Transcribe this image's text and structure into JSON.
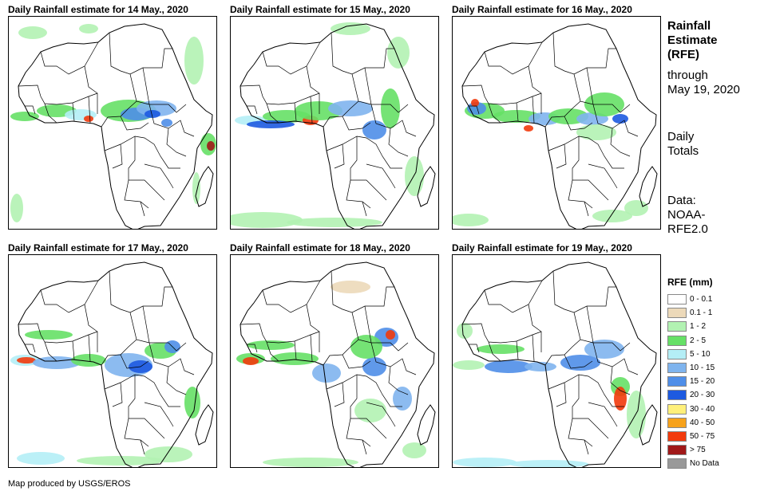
{
  "panels": [
    {
      "title": "Daily Rainfall estimate for 14 May., 2020"
    },
    {
      "title": "Daily Rainfall estimate for 15 May., 2020"
    },
    {
      "title": "Daily Rainfall estimate for 16 May., 2020"
    },
    {
      "title": "Daily Rainfall estimate for 17 May., 2020"
    },
    {
      "title": "Daily Rainfall estimate for 18 May., 2020"
    },
    {
      "title": "Daily Rainfall estimate for 19 May., 2020"
    }
  ],
  "side": {
    "title_line1": "Rainfall",
    "title_line2": "Estimate",
    "title_line3": "(RFE)",
    "through": "through",
    "date": "May 19, 2020",
    "daily1": "Daily",
    "daily2": "Totals",
    "data1": "Data:",
    "data2": "NOAA-",
    "data3": "RFE2.0"
  },
  "legend": {
    "title": "RFE (mm)",
    "items": [
      {
        "label": "0 - 0.1",
        "color": "#ffffff"
      },
      {
        "label": "0.1 - 1",
        "color": "#ecd9b9"
      },
      {
        "label": "1 - 2",
        "color": "#b2f2b2"
      },
      {
        "label": "2 - 5",
        "color": "#66e066"
      },
      {
        "label": "5 - 10",
        "color": "#b4eef6"
      },
      {
        "label": "10 - 15",
        "color": "#7fb4ee"
      },
      {
        "label": "15 - 20",
        "color": "#4f8ee8"
      },
      {
        "label": "20 - 30",
        "color": "#1d5ae0"
      },
      {
        "label": "30 - 40",
        "color": "#fff07a"
      },
      {
        "label": "40 - 50",
        "color": "#f7a21b"
      },
      {
        "label": "50 - 75",
        "color": "#f23a0c"
      },
      {
        "label": "> 75",
        "color": "#a01818"
      },
      {
        "label": "No Data",
        "color": "#999999"
      }
    ]
  },
  "credit": "Map produced by USGS/EROS"
}
